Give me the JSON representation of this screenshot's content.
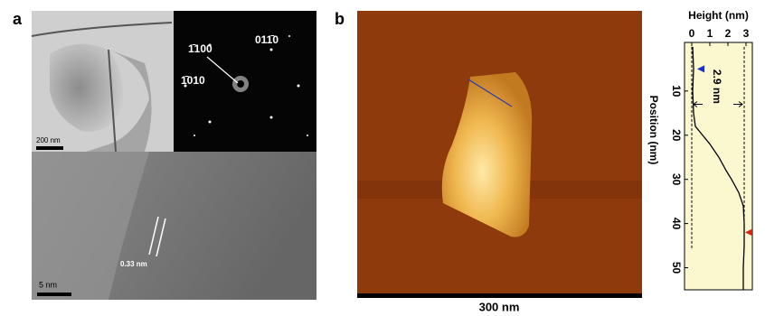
{
  "panels": {
    "a": {
      "label": "a",
      "scale_tem": "200 nm",
      "index_1": "1̄100",
      "index_2": "011̄0",
      "index_3": "1̄010",
      "scale_hrtem": "5 nm",
      "spacing": "0.33 nm"
    },
    "b": {
      "label": "b",
      "scale_afm": "300 nm"
    }
  },
  "chart_data": {
    "type": "line",
    "title": "Height (nm)",
    "ylabel": "Position (nm)",
    "x": [
      0,
      5,
      10,
      15,
      18,
      20,
      22,
      25,
      28,
      30,
      33,
      36,
      40,
      45,
      50,
      55
    ],
    "values": [
      0.05,
      0.1,
      0.05,
      0.1,
      0.2,
      0.6,
      1.0,
      1.5,
      1.9,
      2.2,
      2.6,
      2.85,
      2.9,
      2.9,
      2.85,
      2.85
    ],
    "color": "#000000",
    "xlim": [
      -0.4,
      3.35
    ],
    "xticks": [
      0,
      1,
      2,
      3
    ],
    "ylim": [
      -1,
      55
    ],
    "yticks": [
      10,
      20,
      30,
      40,
      50
    ],
    "reference_heights": [
      0,
      2.9
    ],
    "annotation": "2.9 nm",
    "markers": [
      {
        "color": "#1a2fd0",
        "position": 5,
        "height": 0.3
      },
      {
        "color": "#e02010",
        "position": 42,
        "height": 2.95
      }
    ],
    "background": "#fbf8cf"
  }
}
